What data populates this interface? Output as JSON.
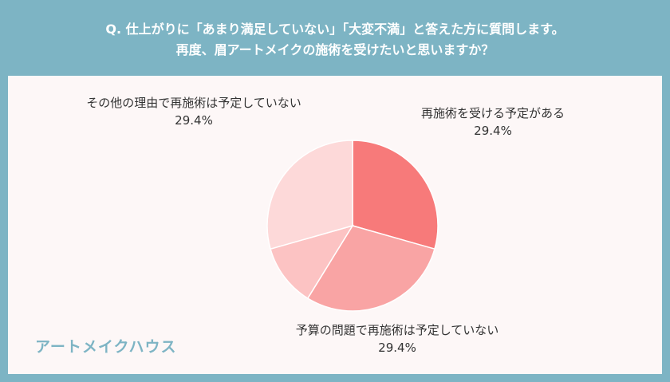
{
  "header": {
    "line1": "Q. 仕上がりに「あまり満足していない」「大変不満」と答えた方に質問します。",
    "line2": "再度、眉アートメイクの施術を受けたいと思いますか？"
  },
  "brand": "アートメイクハウス",
  "chart_data": {
    "type": "pie",
    "title": "",
    "start_angle_deg": 0,
    "direction": "clockwise",
    "slices": [
      {
        "label": "再施術を受ける予定がある",
        "pct_label": "29.4%",
        "value": 29.4,
        "color": "#f77a7a"
      },
      {
        "label": "予算の問題で再施術は予定していない",
        "pct_label": "29.4%",
        "value": 29.4,
        "color": "#f9a4a4"
      },
      {
        "label": "",
        "pct_label": "",
        "value": 11.8,
        "color": "#fcc3c3"
      },
      {
        "label": "その他の理由で再施術は予定していない",
        "pct_label": "29.4%",
        "value": 29.4,
        "color": "#fdd9d9"
      }
    ]
  }
}
